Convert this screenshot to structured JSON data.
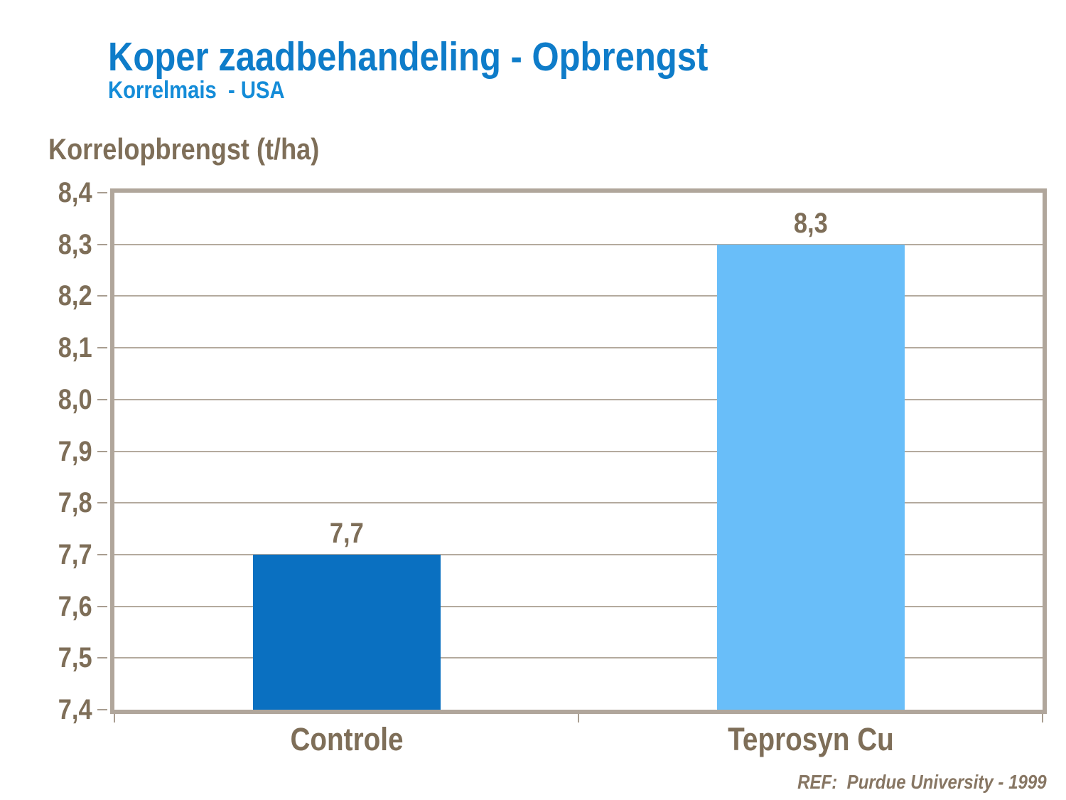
{
  "header": {
    "title": "Koper zaadbehandeling - Opbrengst",
    "subtitle": "Korrelmais  - USA"
  },
  "chart_data": {
    "type": "bar",
    "title": "Korrelopbrengst (t/ha)",
    "ylabel": "Korrelopbrengst (t/ha)",
    "xlabel": "",
    "categories": [
      "Controle",
      "Teprosyn Cu"
    ],
    "values": [
      7.7,
      8.3
    ],
    "value_labels": [
      "7,7",
      "8,3"
    ],
    "ylim": [
      7.4,
      8.4
    ],
    "ytick_step": 0.1,
    "ytick_labels": [
      "8,4",
      "8,3",
      "8,2",
      "8,1",
      "8,0",
      "7,9",
      "7,8",
      "7,7",
      "7,6",
      "7,5",
      "7,4"
    ],
    "grid": true,
    "legend": false,
    "bar_colors": [
      "#0a70c1",
      "#69bef9"
    ]
  },
  "footer": {
    "ref": "REF:  Purdue University - 1999"
  },
  "colors": {
    "title_blue": "#0e7cc9",
    "subtitle_blue": "#148cd8",
    "label_brown": "#7e6e58",
    "footer_brown": "#877663",
    "frame_tan": "#b0a69b",
    "gridline_tan": "#b4aa9e",
    "bar_dark_blue": "#0a70c1",
    "bar_light_blue": "#69bef9",
    "background": "#ffffff"
  }
}
